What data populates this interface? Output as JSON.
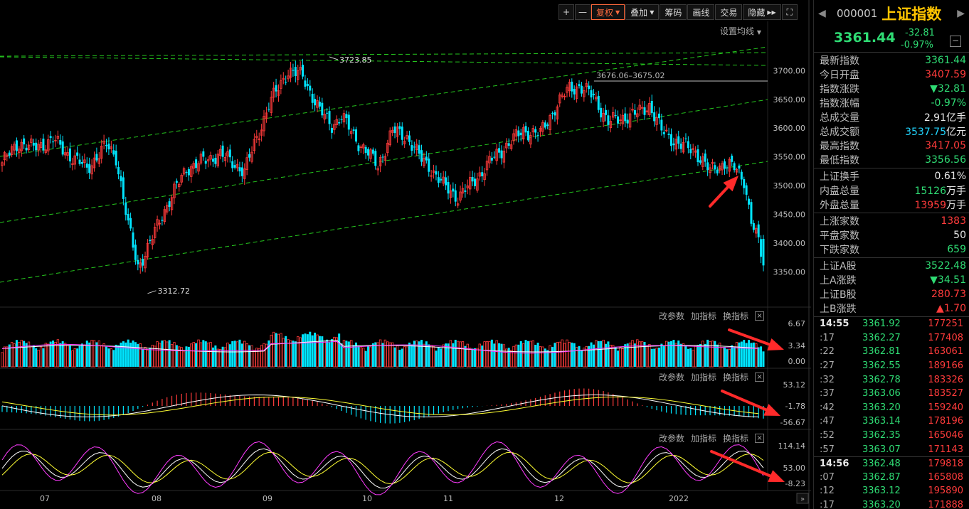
{
  "toolbar": {
    "plus": "+",
    "minus": "—",
    "fuquan": "复权",
    "diejia": "叠加",
    "chouma": "筹码",
    "huaxian": "画线",
    "jiaoyi": "交易",
    "yincang": "隐藏",
    "set_ma": "设置均线"
  },
  "panel_controls": {
    "params": "改参数",
    "add": "加指标",
    "swap": "换指标",
    "close": "×"
  },
  "chart_data": {
    "type": "candlestick",
    "x_labels": [
      "07",
      "08",
      "09",
      "10",
      "11",
      "12",
      "2022"
    ],
    "price_axis": {
      "ylim": [
        3310,
        3730
      ],
      "ticks": [
        3350.0,
        3400.0,
        3450.0,
        3500.0,
        3550.0,
        3600.0,
        3650.0,
        3700.0
      ]
    },
    "annotations": {
      "high": "3723.85",
      "low": "3312.72",
      "mid": "3676.06–3675.02"
    },
    "key_points": [
      {
        "x": 0,
        "close": 3540
      },
      {
        "x": 7,
        "close": 3575
      },
      {
        "x": 13,
        "close": 3565
      },
      {
        "x": 21,
        "close": 3580
      },
      {
        "x": 27,
        "close": 3555
      },
      {
        "x": 35,
        "close": 3530
      },
      {
        "x": 43,
        "close": 3570
      },
      {
        "x": 47,
        "close": 3550
      },
      {
        "x": 52,
        "close": 3430
      },
      {
        "x": 56,
        "close": 3360
      },
      {
        "x": 60,
        "close": 3390
      },
      {
        "x": 66,
        "close": 3450
      },
      {
        "x": 76,
        "close": 3530
      },
      {
        "x": 90,
        "close": 3555
      },
      {
        "x": 100,
        "close": 3525
      },
      {
        "x": 110,
        "close": 3640
      },
      {
        "x": 118,
        "close": 3700
      },
      {
        "x": 124,
        "close": 3690
      },
      {
        "x": 131,
        "close": 3630
      },
      {
        "x": 136,
        "close": 3605
      },
      {
        "x": 140,
        "close": 3620
      },
      {
        "x": 147,
        "close": 3575
      },
      {
        "x": 155,
        "close": 3535
      },
      {
        "x": 161,
        "close": 3595
      },
      {
        "x": 167,
        "close": 3585
      },
      {
        "x": 173,
        "close": 3545
      },
      {
        "x": 176,
        "close": 3535
      },
      {
        "x": 182,
        "close": 3500
      },
      {
        "x": 188,
        "close": 3480
      },
      {
        "x": 194,
        "close": 3505
      },
      {
        "x": 202,
        "close": 3545
      },
      {
        "x": 208,
        "close": 3570
      },
      {
        "x": 215,
        "close": 3595
      },
      {
        "x": 222,
        "close": 3590
      },
      {
        "x": 228,
        "close": 3635
      },
      {
        "x": 234,
        "close": 3670
      },
      {
        "x": 238,
        "close": 3672
      },
      {
        "x": 244,
        "close": 3655
      },
      {
        "x": 250,
        "close": 3610
      },
      {
        "x": 257,
        "close": 3620
      },
      {
        "x": 262,
        "close": 3625
      },
      {
        "x": 267,
        "close": 3640
      },
      {
        "x": 272,
        "close": 3595
      },
      {
        "x": 280,
        "close": 3570
      },
      {
        "x": 286,
        "close": 3560
      },
      {
        "x": 292,
        "close": 3525
      },
      {
        "x": 298,
        "close": 3540
      },
      {
        "x": 302,
        "close": 3530
      },
      {
        "x": 306,
        "close": 3510
      },
      {
        "x": 309,
        "close": 3440
      },
      {
        "x": 312,
        "close": 3400
      },
      {
        "x": 314,
        "close": 3361.44
      }
    ],
    "volume_axis": [
      "6.67",
      "3.34",
      "0.00"
    ],
    "macd_axis": [
      "53.12",
      "-1.78",
      "-56.67"
    ],
    "kdj_axis": [
      "114.14",
      "53.00",
      "-8.23"
    ]
  },
  "quote": {
    "code": "000001",
    "name": "上证指数",
    "price": "3361.44",
    "change": "-32.81",
    "change_pct": "-0.97%",
    "rows1": [
      {
        "label": "最新指数",
        "value": "3361.44",
        "cls": "green"
      },
      {
        "label": "今日开盘",
        "value": "3407.59",
        "cls": "red"
      },
      {
        "label": "指数涨跌",
        "value": "▼32.81",
        "cls": "green"
      },
      {
        "label": "指数涨幅",
        "value": "-0.97%",
        "cls": "green"
      },
      {
        "label": "总成交量",
        "value": "2.91",
        "unit": "亿手",
        "cls": "white"
      },
      {
        "label": "总成交额",
        "value": "3537.75",
        "unit": "亿元",
        "cls": "cyan"
      },
      {
        "label": "最高指数",
        "value": "3417.05",
        "cls": "red"
      },
      {
        "label": "最低指数",
        "value": "3356.56",
        "cls": "green"
      }
    ],
    "rows2": [
      {
        "label": "上证换手",
        "value": "0.61%",
        "cls": "white"
      },
      {
        "label": "内盘总量",
        "value": "15126",
        "unit": "万手",
        "cls": "green"
      },
      {
        "label": "外盘总量",
        "value": "13959",
        "unit": "万手",
        "cls": "red"
      }
    ],
    "rows3": [
      {
        "label": "上涨家数",
        "value": "1383",
        "cls": "red"
      },
      {
        "label": "平盘家数",
        "value": "50",
        "cls": "white"
      },
      {
        "label": "下跌家数",
        "value": "659",
        "cls": "green"
      }
    ],
    "rows4": [
      {
        "label": "上证A股",
        "value": "3522.48",
        "cls": "green"
      },
      {
        "label": "上A涨跌",
        "value": "▼34.51",
        "cls": "green"
      },
      {
        "label": "上证B股",
        "value": "280.73",
        "cls": "red"
      },
      {
        "label": "上B涨跌",
        "value": "▲1.70",
        "cls": "red"
      }
    ]
  },
  "ticks": [
    {
      "t": "14:55",
      "major": true,
      "p": "3361.92",
      "v": "177251"
    },
    {
      "t": ":17",
      "p": "3362.27",
      "v": "177408"
    },
    {
      "t": ":22",
      "p": "3362.81",
      "v": "163061"
    },
    {
      "t": ":27",
      "p": "3362.55",
      "v": "189166"
    },
    {
      "t": ":32",
      "p": "3362.78",
      "v": "183326"
    },
    {
      "t": ":37",
      "p": "3363.06",
      "v": "183527"
    },
    {
      "t": ":42",
      "p": "3363.20",
      "v": "159240"
    },
    {
      "t": ":47",
      "p": "3363.14",
      "v": "178196"
    },
    {
      "t": ":52",
      "p": "3362.35",
      "v": "165046"
    },
    {
      "t": ":57",
      "p": "3363.07",
      "v": "171143"
    },
    {
      "t": "14:56",
      "major": true,
      "p": "3362.48",
      "v": "179818"
    },
    {
      "t": ":07",
      "p": "3362.87",
      "v": "165808"
    },
    {
      "t": ":12",
      "p": "3363.12",
      "v": "195890"
    },
    {
      "t": ":17",
      "p": "3363.20",
      "v": "171888"
    }
  ],
  "colors": {
    "up": "#ff3b3b",
    "down": "#00e5ff",
    "grid_dash": "#25c61e",
    "arrow": "#ff2a2a"
  }
}
